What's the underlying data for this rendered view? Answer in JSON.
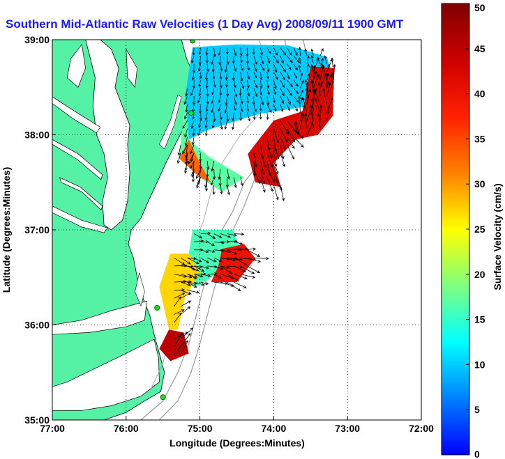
{
  "title": "Southern Mid-Atlantic Raw Velocities (1 Day Avg) 2008/09/11 1900 GMT",
  "map": {
    "xlabel": "Longitude (Degrees:Minutes)",
    "ylabel": "Latitude (Degrees:Minutes)",
    "xlim": [
      -77,
      -72
    ],
    "ylim": [
      35,
      39
    ],
    "x_ticks": [
      "77:00",
      "76:00",
      "75:00",
      "74:00",
      "73:00",
      "72:00"
    ],
    "y_ticks": [
      "35:00",
      "36:00",
      "37:00",
      "38:00",
      "39:00"
    ],
    "grid": "dotted",
    "land_color": "#55f2a5",
    "water_color": "#ffffff"
  },
  "colorbar": {
    "label": "Surface Velocity (cm/s)",
    "range": [
      0,
      50
    ],
    "ticks": [
      "0",
      "5",
      "10",
      "15",
      "20",
      "25",
      "30",
      "35",
      "40",
      "45",
      "50"
    ],
    "colormap": "jet"
  },
  "stations": [
    {
      "name": "station-1",
      "lon": -75.1,
      "lat": 38.99
    },
    {
      "name": "station-2",
      "lon": -75.12,
      "lat": 38.23
    },
    {
      "name": "station-3",
      "lon": -75.58,
      "lat": 36.18
    },
    {
      "name": "station-4",
      "lon": -75.5,
      "lat": 35.24
    }
  ],
  "velocity_regions": [
    {
      "name": "northern-region-cool",
      "polygon": [
        [
          -75.1,
          38.92
        ],
        [
          -74.5,
          38.95
        ],
        [
          -73.8,
          38.94
        ],
        [
          -73.28,
          38.82
        ],
        [
          -73.18,
          38.55
        ],
        [
          -73.55,
          38.3
        ],
        [
          -74.2,
          38.22
        ],
        [
          -74.9,
          38.05
        ],
        [
          -75.15,
          37.95
        ],
        [
          -75.2,
          38.4
        ]
      ],
      "speed": 10
    },
    {
      "name": "northern-region-mid",
      "polygon": [
        [
          -75.2,
          38.4
        ],
        [
          -75.15,
          37.95
        ],
        [
          -74.9,
          37.78
        ],
        [
          -74.4,
          37.55
        ],
        [
          -74.7,
          37.4
        ],
        [
          -75.0,
          37.55
        ],
        [
          -75.28,
          37.75
        ]
      ],
      "speed": 17
    },
    {
      "name": "northern-region-warm-west",
      "polygon": [
        [
          -75.28,
          37.75
        ],
        [
          -75.0,
          37.55
        ],
        [
          -74.85,
          37.5
        ],
        [
          -75.0,
          37.7
        ],
        [
          -75.15,
          37.95
        ]
      ],
      "speed": 33
    },
    {
      "name": "northern-region-hot-east",
      "polygon": [
        [
          -73.5,
          38.72
        ],
        [
          -73.18,
          38.7
        ],
        [
          -73.2,
          38.2
        ],
        [
          -73.4,
          38.0
        ],
        [
          -73.7,
          37.95
        ],
        [
          -74.0,
          37.7
        ],
        [
          -73.9,
          37.45
        ],
        [
          -74.25,
          37.5
        ],
        [
          -74.35,
          37.8
        ],
        [
          -74.0,
          38.15
        ],
        [
          -73.6,
          38.25
        ]
      ],
      "speed": 42
    },
    {
      "name": "southern-region-mid",
      "polygon": [
        [
          -75.1,
          37.0
        ],
        [
          -74.55,
          37.0
        ],
        [
          -74.45,
          36.8
        ],
        [
          -74.75,
          36.55
        ],
        [
          -75.05,
          36.4
        ],
        [
          -75.3,
          36.45
        ],
        [
          -75.15,
          36.75
        ]
      ],
      "speed": 16
    },
    {
      "name": "southern-region-warm",
      "polygon": [
        [
          -75.4,
          36.75
        ],
        [
          -75.15,
          36.75
        ],
        [
          -75.0,
          36.55
        ],
        [
          -75.2,
          36.3
        ],
        [
          -75.3,
          35.95
        ],
        [
          -75.42,
          35.95
        ],
        [
          -75.55,
          36.4
        ]
      ],
      "speed": 27
    },
    {
      "name": "southern-region-hot",
      "polygon": [
        [
          -74.7,
          36.8
        ],
        [
          -74.4,
          36.85
        ],
        [
          -74.25,
          36.7
        ],
        [
          -74.5,
          36.45
        ],
        [
          -74.85,
          36.45
        ],
        [
          -74.75,
          36.62
        ]
      ],
      "speed": 40
    },
    {
      "name": "southern-region-hot-tip",
      "polygon": [
        [
          -75.42,
          35.95
        ],
        [
          -75.22,
          35.92
        ],
        [
          -75.15,
          35.7
        ],
        [
          -75.4,
          35.62
        ],
        [
          -75.55,
          35.75
        ]
      ],
      "speed": 45
    }
  ]
}
